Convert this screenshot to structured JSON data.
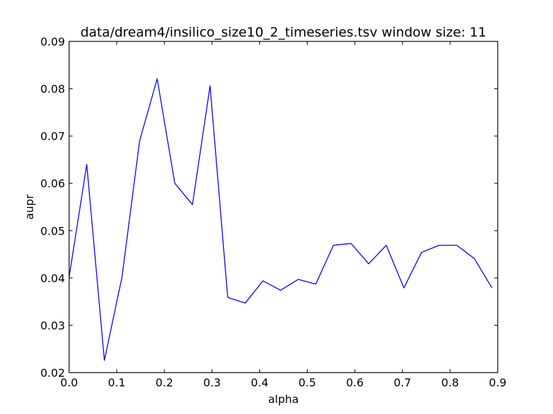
{
  "chart_data": {
    "type": "line",
    "title": "data/dream4/insilico_size10_2_timeseries.tsv window size: 11",
    "xlabel": "alpha",
    "ylabel": "aupr",
    "xlim": [
      0.0,
      0.9
    ],
    "ylim": [
      0.02,
      0.09
    ],
    "x_ticks": [
      "0.0",
      "0.1",
      "0.2",
      "0.3",
      "0.4",
      "0.5",
      "0.6",
      "0.7",
      "0.8",
      "0.9"
    ],
    "y_ticks": [
      "0.02",
      "0.03",
      "0.04",
      "0.05",
      "0.06",
      "0.07",
      "0.08",
      "0.09"
    ],
    "grid": false,
    "line_color": "#0000ff",
    "series": [
      {
        "x": [
          0.0,
          0.037,
          0.074,
          0.111,
          0.148,
          0.185,
          0.222,
          0.259,
          0.296,
          0.333,
          0.37,
          0.407,
          0.444,
          0.481,
          0.518,
          0.555,
          0.592,
          0.629,
          0.666,
          0.703,
          0.74,
          0.777,
          0.814,
          0.851,
          0.888
        ],
        "values": [
          0.0402,
          0.064,
          0.0226,
          0.0402,
          0.069,
          0.0821,
          0.06,
          0.0555,
          0.0806,
          0.0359,
          0.0347,
          0.0394,
          0.0374,
          0.0397,
          0.0387,
          0.0469,
          0.0473,
          0.043,
          0.0469,
          0.0379,
          0.0454,
          0.0469,
          0.0469,
          0.0441,
          0.0379
        ]
      }
    ]
  }
}
